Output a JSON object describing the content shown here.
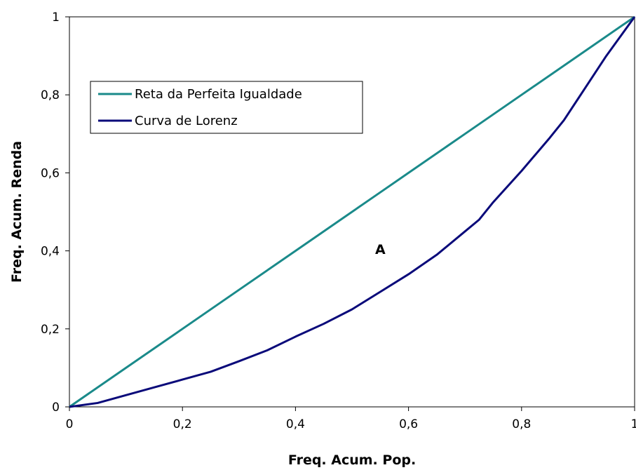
{
  "chart_data": {
    "type": "line",
    "title": "",
    "xlabel": "Freq. Acum. Pop.",
    "ylabel": "Freq. Acum. Renda",
    "xlim": [
      0,
      1
    ],
    "ylim": [
      0,
      1
    ],
    "x_ticks": [
      "0",
      "0,2",
      "0,4",
      "0,6",
      "0,8",
      "1"
    ],
    "y_ticks": [
      "0",
      "0,2",
      "0,4",
      "0,6",
      "0,8",
      "1"
    ],
    "grid": false,
    "legend_position": "upper-left",
    "series": [
      {
        "name": "Reta da Perfeita Igualdade",
        "color": "#1a8a8a",
        "points": [
          [
            0,
            0
          ],
          [
            0.1,
            0.1
          ],
          [
            0.15,
            0.15
          ],
          [
            0.2,
            0.2
          ],
          [
            0.3,
            0.3
          ],
          [
            0.4,
            0.4
          ],
          [
            0.5,
            0.5
          ],
          [
            0.55,
            0.55
          ],
          [
            0.6,
            0.6
          ],
          [
            0.7,
            0.7
          ],
          [
            0.8,
            0.8
          ],
          [
            0.9,
            0.9
          ],
          [
            1,
            1
          ]
        ]
      },
      {
        "name": "Curva de Lorenz",
        "color": "#0a0a7a",
        "points": [
          [
            0,
            0
          ],
          [
            0.05,
            0.01
          ],
          [
            0.1,
            0.03
          ],
          [
            0.15,
            0.05
          ],
          [
            0.2,
            0.07
          ],
          [
            0.25,
            0.09
          ],
          [
            0.3,
            0.117
          ],
          [
            0.35,
            0.145
          ],
          [
            0.4,
            0.18
          ],
          [
            0.45,
            0.213
          ],
          [
            0.5,
            0.25
          ],
          [
            0.55,
            0.295
          ],
          [
            0.6,
            0.34
          ],
          [
            0.65,
            0.39
          ],
          [
            0.7,
            0.45
          ],
          [
            0.725,
            0.48
          ],
          [
            0.75,
            0.525
          ],
          [
            0.8,
            0.605
          ],
          [
            0.85,
            0.69
          ],
          [
            0.875,
            0.735
          ],
          [
            0.9,
            0.79
          ],
          [
            0.95,
            0.9
          ],
          [
            1,
            1
          ]
        ]
      }
    ],
    "annotations": [
      {
        "text": "A",
        "x": 0.55,
        "y": 0.405
      }
    ]
  }
}
